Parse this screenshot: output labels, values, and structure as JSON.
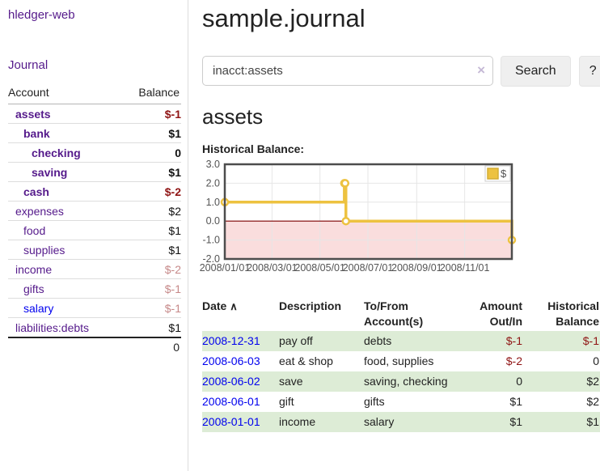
{
  "app": {
    "title": "hledger-web",
    "nav_journal": "Journal"
  },
  "sidebar": {
    "accounts_header": {
      "account": "Account",
      "balance": "Balance"
    },
    "accounts": [
      {
        "name": "assets",
        "balance": "$-1",
        "level": 1,
        "bold": true,
        "link": "purple",
        "balance_style": "negstrong"
      },
      {
        "name": "bank",
        "balance": "$1",
        "level": 2,
        "bold": true,
        "link": "purple",
        "balance_style": "strong"
      },
      {
        "name": "checking",
        "balance": "0",
        "level": 3,
        "bold": true,
        "link": "purple",
        "balance_style": "strong"
      },
      {
        "name": "saving",
        "balance": "$1",
        "level": 3,
        "bold": true,
        "link": "purple",
        "balance_style": "strong"
      },
      {
        "name": "cash",
        "balance": "$-2",
        "level": 2,
        "bold": true,
        "link": "purple",
        "balance_style": "negstrong"
      },
      {
        "name": "expenses",
        "balance": "$2",
        "level": 1,
        "bold": false,
        "link": "purple",
        "balance_style": "plain"
      },
      {
        "name": "food",
        "balance": "$1",
        "level": 2,
        "bold": false,
        "link": "purple",
        "balance_style": "plain"
      },
      {
        "name": "supplies",
        "balance": "$1",
        "level": 2,
        "bold": false,
        "link": "purple",
        "balance_style": "plain"
      },
      {
        "name": "income",
        "balance": "$-2",
        "level": 1,
        "bold": false,
        "link": "purple",
        "balance_style": "negsoft"
      },
      {
        "name": "gifts",
        "balance": "$-1",
        "level": 2,
        "bold": false,
        "link": "purple",
        "balance_style": "negsoft"
      },
      {
        "name": "salary",
        "balance": "$-1",
        "level": 2,
        "bold": false,
        "link": "blue",
        "balance_style": "negsoft"
      },
      {
        "name": "liabilities:debts",
        "balance": "$1",
        "level": 1,
        "bold": false,
        "link": "purple",
        "balance_style": "plain"
      }
    ],
    "total": "0"
  },
  "header": {
    "title": "sample.journal"
  },
  "search": {
    "value": "inacct:assets",
    "clear_icon": "×",
    "button": "Search",
    "help_button": "?"
  },
  "account_page": {
    "title": "assets",
    "chart_label": "Historical Balance:"
  },
  "chart_data": {
    "type": "line",
    "style": "step",
    "title": "Historical Balance",
    "series": [
      {
        "name": "$",
        "points": [
          [
            "2008-01-01",
            1
          ],
          [
            "2008-06-01",
            2
          ],
          [
            "2008-06-02",
            2
          ],
          [
            "2008-06-03",
            0
          ],
          [
            "2008-12-31",
            -1
          ]
        ]
      }
    ],
    "xlim": [
      "2008-01-01",
      "2008-12-31"
    ],
    "ylim": [
      -2,
      3
    ],
    "x_ticks": [
      "2008/01/01",
      "2008/03/01",
      "2008/05/01",
      "2008/07/01",
      "2008/09/01",
      "2008/11/01"
    ],
    "y_ticks": [
      "3.0",
      "2.0",
      "1.0",
      "0.0",
      "-1.0",
      "-2.0"
    ],
    "grid": true,
    "legend": {
      "label": "$",
      "position": "top-right"
    },
    "colors": {
      "line": "#edc240",
      "marker_fill": "#ffffff",
      "negative_region": "#fadddd",
      "zero_line": "#800000",
      "grid": "#e6e6e6",
      "border": "#4d4d4d",
      "axis_text": "#545454",
      "swatch_border": "#d4ad35"
    }
  },
  "register": {
    "columns": [
      "Date",
      "Description",
      "To/From Account(s)",
      "Amount Out/In",
      "Historical Balance"
    ],
    "sort_icon": "∧",
    "rows": [
      {
        "date": "2008-12-31",
        "description": "pay off",
        "accounts": "debts",
        "amount": "$-1",
        "balance": "$-1",
        "amount_neg": true,
        "balance_neg": true
      },
      {
        "date": "2008-06-03",
        "description": "eat & shop",
        "accounts": "food, supplies",
        "amount": "$-2",
        "balance": "0",
        "amount_neg": true,
        "balance_neg": false
      },
      {
        "date": "2008-06-02",
        "description": "save",
        "accounts": "saving, checking",
        "amount": "0",
        "balance": "$2",
        "amount_neg": false,
        "balance_neg": false
      },
      {
        "date": "2008-06-01",
        "description": "gift",
        "accounts": "gifts",
        "amount": "$1",
        "balance": "$2",
        "amount_neg": false,
        "balance_neg": false
      },
      {
        "date": "2008-01-01",
        "description": "income",
        "accounts": "salary",
        "amount": "$1",
        "balance": "$1",
        "amount_neg": false,
        "balance_neg": false
      }
    ]
  }
}
